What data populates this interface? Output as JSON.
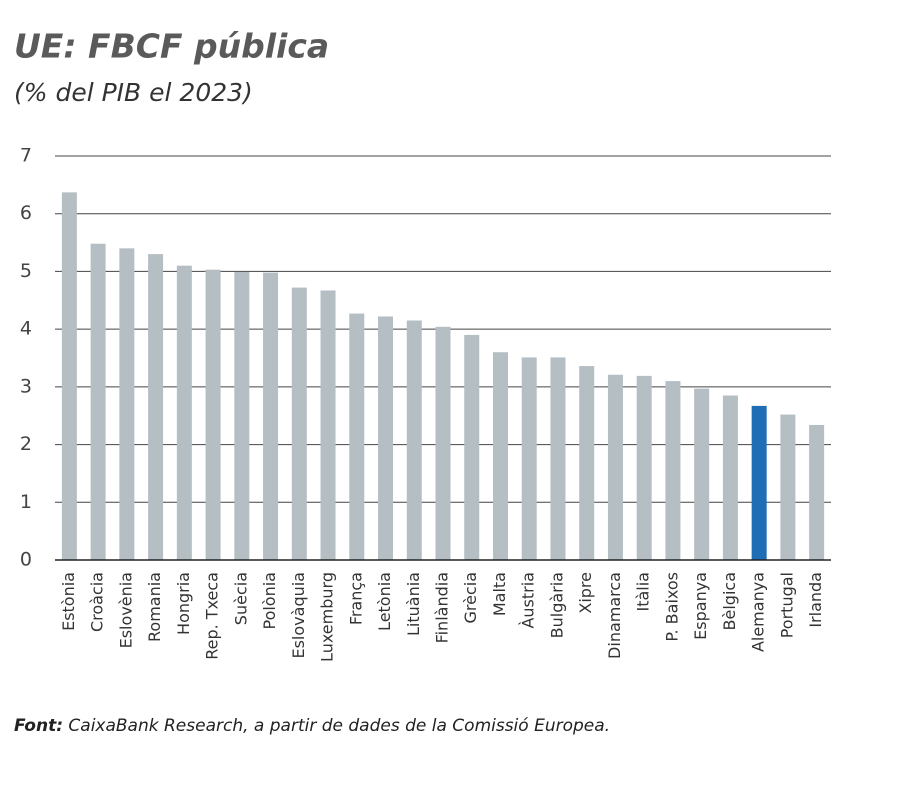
{
  "chart_data": {
    "type": "bar",
    "title": "UE: FBCF pública",
    "subtitle": "(% del PIB el 2023)",
    "categories": [
      "Estònia",
      "Croàcia",
      "Eslovènia",
      "Romania",
      "Hongria",
      "Rep. Txeca",
      "Suècia",
      "Polònia",
      "Eslovàquia",
      "Luxemburg",
      "França",
      "Letònia",
      "Lituània",
      "Finlàndia",
      "Grècia",
      "Malta",
      "Àustria",
      "Bulgària",
      "Xipre",
      "Dinamarca",
      "Itàlia",
      "P. Baixos",
      "Espanya",
      "Bèlgica",
      "Alemanya",
      "Portugal",
      "Irlanda"
    ],
    "values": [
      6.37,
      5.48,
      5.4,
      5.3,
      5.1,
      5.03,
      4.99,
      4.98,
      4.72,
      4.67,
      4.27,
      4.22,
      4.15,
      4.04,
      3.9,
      3.6,
      3.51,
      3.51,
      3.36,
      3.21,
      3.19,
      3.1,
      2.97,
      2.85,
      2.67,
      2.52,
      2.34
    ],
    "color": "#b5bec3",
    "highlight_category": "Alemanya",
    "highlight_color": "#1f6db4",
    "ylim": [
      0,
      7
    ],
    "yticks": [
      0,
      1,
      2,
      3,
      4,
      5,
      6,
      7
    ],
    "grid": true,
    "source_label": "Font:",
    "source_text": "CaixaBank Research, a partir de dades de la Comissió Europea."
  }
}
